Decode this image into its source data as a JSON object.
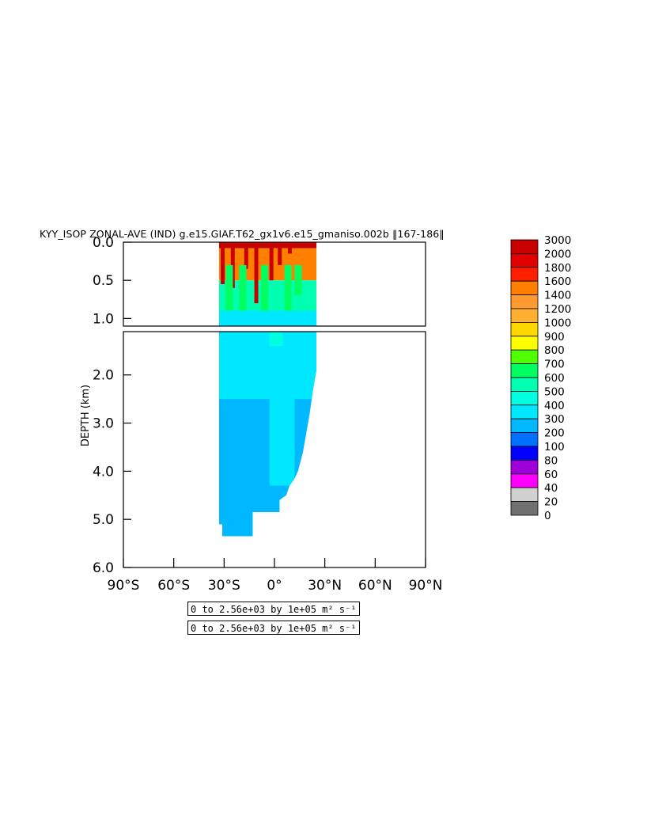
{
  "chart_data": {
    "type": "heatmap",
    "title": "KYY_ISOP ZONAL-AVE (IND) g.e15.GIAF.T62_gx1v6.e15_gmaniso.002b ‖167-186‖",
    "xlabel": "",
    "ylabel": "DEPTH (km)",
    "x_ticks": [
      "90°S",
      "60°S",
      "30°S",
      "0°",
      "30°N",
      "60°N",
      "90°N"
    ],
    "x_tick_values": [
      -90,
      -60,
      -30,
      0,
      30,
      60,
      90
    ],
    "y_ticks_upper": [
      "0.0",
      "0.5",
      "1.0"
    ],
    "y_tick_values_upper": [
      0.0,
      0.5,
      1.0
    ],
    "y_ticks_lower": [
      "2.0",
      "3.0",
      "4.0",
      "5.0",
      "6.0"
    ],
    "y_tick_values_lower": [
      2.0,
      3.0,
      4.0,
      5.0,
      6.0
    ],
    "xlim": [
      -90,
      90
    ],
    "ylim_upper": [
      0,
      1.1
    ],
    "ylim_lower": [
      1.1,
      6.0
    ],
    "colorbar_levels": [
      "3000",
      "2000",
      "1800",
      "1600",
      "1400",
      "1200",
      "1000",
      "900",
      "800",
      "700",
      "600",
      "500",
      "400",
      "300",
      "200",
      "100",
      "80",
      "60",
      "40",
      "20",
      "0"
    ],
    "colorbar_colors": [
      "#c80000",
      "#e00000",
      "#ff2000",
      "#ff7f00",
      "#ff9a30",
      "#ffb030",
      "#ffd800",
      "#ffff00",
      "#50ff00",
      "#00ff60",
      "#00ffb0",
      "#00ffe0",
      "#00e8ff",
      "#00b8ff",
      "#0070ff",
      "#0000ff",
      "#a000d8",
      "#ff00ff",
      "#d0d0d0",
      "#707070"
    ],
    "value_range_text": "0 to 2.56e+03 by 1e+05 m² s⁻¹",
    "value_range_text_2": "0 to 2.56e+03 by 1e+05 m² s⁻¹",
    "ocean_extent": {
      "lat_south": -33,
      "lat_north": 25,
      "bottom_profile": [
        [
          -33,
          5.1
        ],
        [
          -31,
          5.1
        ],
        [
          -31,
          5.35
        ],
        [
          -28,
          5.35
        ],
        [
          -28,
          5.35
        ],
        [
          -13,
          5.35
        ],
        [
          -13,
          4.85
        ],
        [
          3,
          4.85
        ],
        [
          3,
          4.6
        ],
        [
          7,
          4.5
        ],
        [
          9,
          4.3
        ],
        [
          12,
          4.15
        ],
        [
          14,
          4.0
        ],
        [
          17,
          3.6
        ],
        [
          19,
          3.2
        ],
        [
          21,
          2.8
        ],
        [
          23,
          2.3
        ],
        [
          25,
          1.9
        ],
        [
          25,
          1.1
        ]
      ],
      "fill_values_km": [
        [
          0.0,
          0.08,
          2000
        ],
        [
          0.08,
          0.5,
          1400
        ],
        [
          0.5,
          1.1,
          500
        ],
        [
          1.1,
          3.5,
          300
        ],
        [
          3.5,
          4.8,
          250
        ],
        [
          4.8,
          5.4,
          200
        ]
      ]
    }
  }
}
